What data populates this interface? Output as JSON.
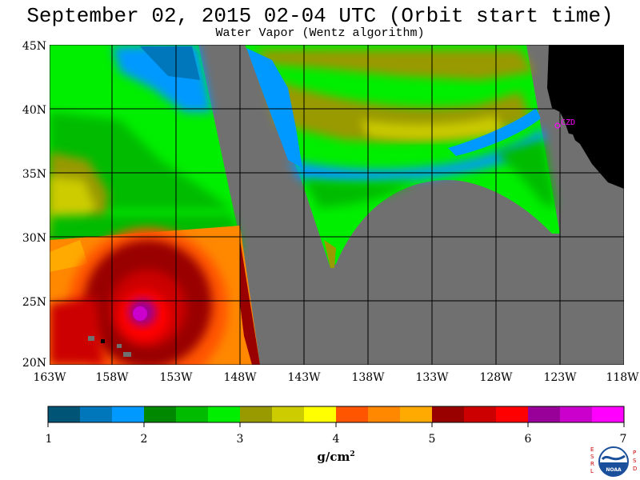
{
  "title": "September 02, 2015  02-04 UTC  (Orbit start time)",
  "subtitle": "Water Vapor (Wentz algorithm)",
  "map": {
    "lat_labels": [
      "45N",
      "40N",
      "35N",
      "30N",
      "25N",
      "20N"
    ],
    "lon_labels": [
      "163W",
      "158W",
      "153W",
      "148W",
      "143W",
      "138W",
      "133W",
      "128W",
      "123W",
      "118W"
    ],
    "place_label": "CZD",
    "colors": {
      "no_data": "#707070",
      "land": "#000000",
      "place": "#ff00ff"
    }
  },
  "colorbar": {
    "units": "g/cm",
    "units_exp": "2",
    "tick_labels": [
      "1",
      "2",
      "3",
      "4",
      "5",
      "6",
      "7"
    ],
    "colors": [
      "#005577",
      "#0077bb",
      "#0099ff",
      "#008800",
      "#00bb00",
      "#00ee00",
      "#999900",
      "#cccc00",
      "#ffff00",
      "#ff5500",
      "#ff8800",
      "#ffaa00",
      "#990000",
      "#cc0000",
      "#ff0000",
      "#990099",
      "#cc00cc",
      "#ff00ff"
    ]
  },
  "logo": {
    "left_letters": "ESRL",
    "right_letters": "PSD",
    "center": "NOAA"
  }
}
